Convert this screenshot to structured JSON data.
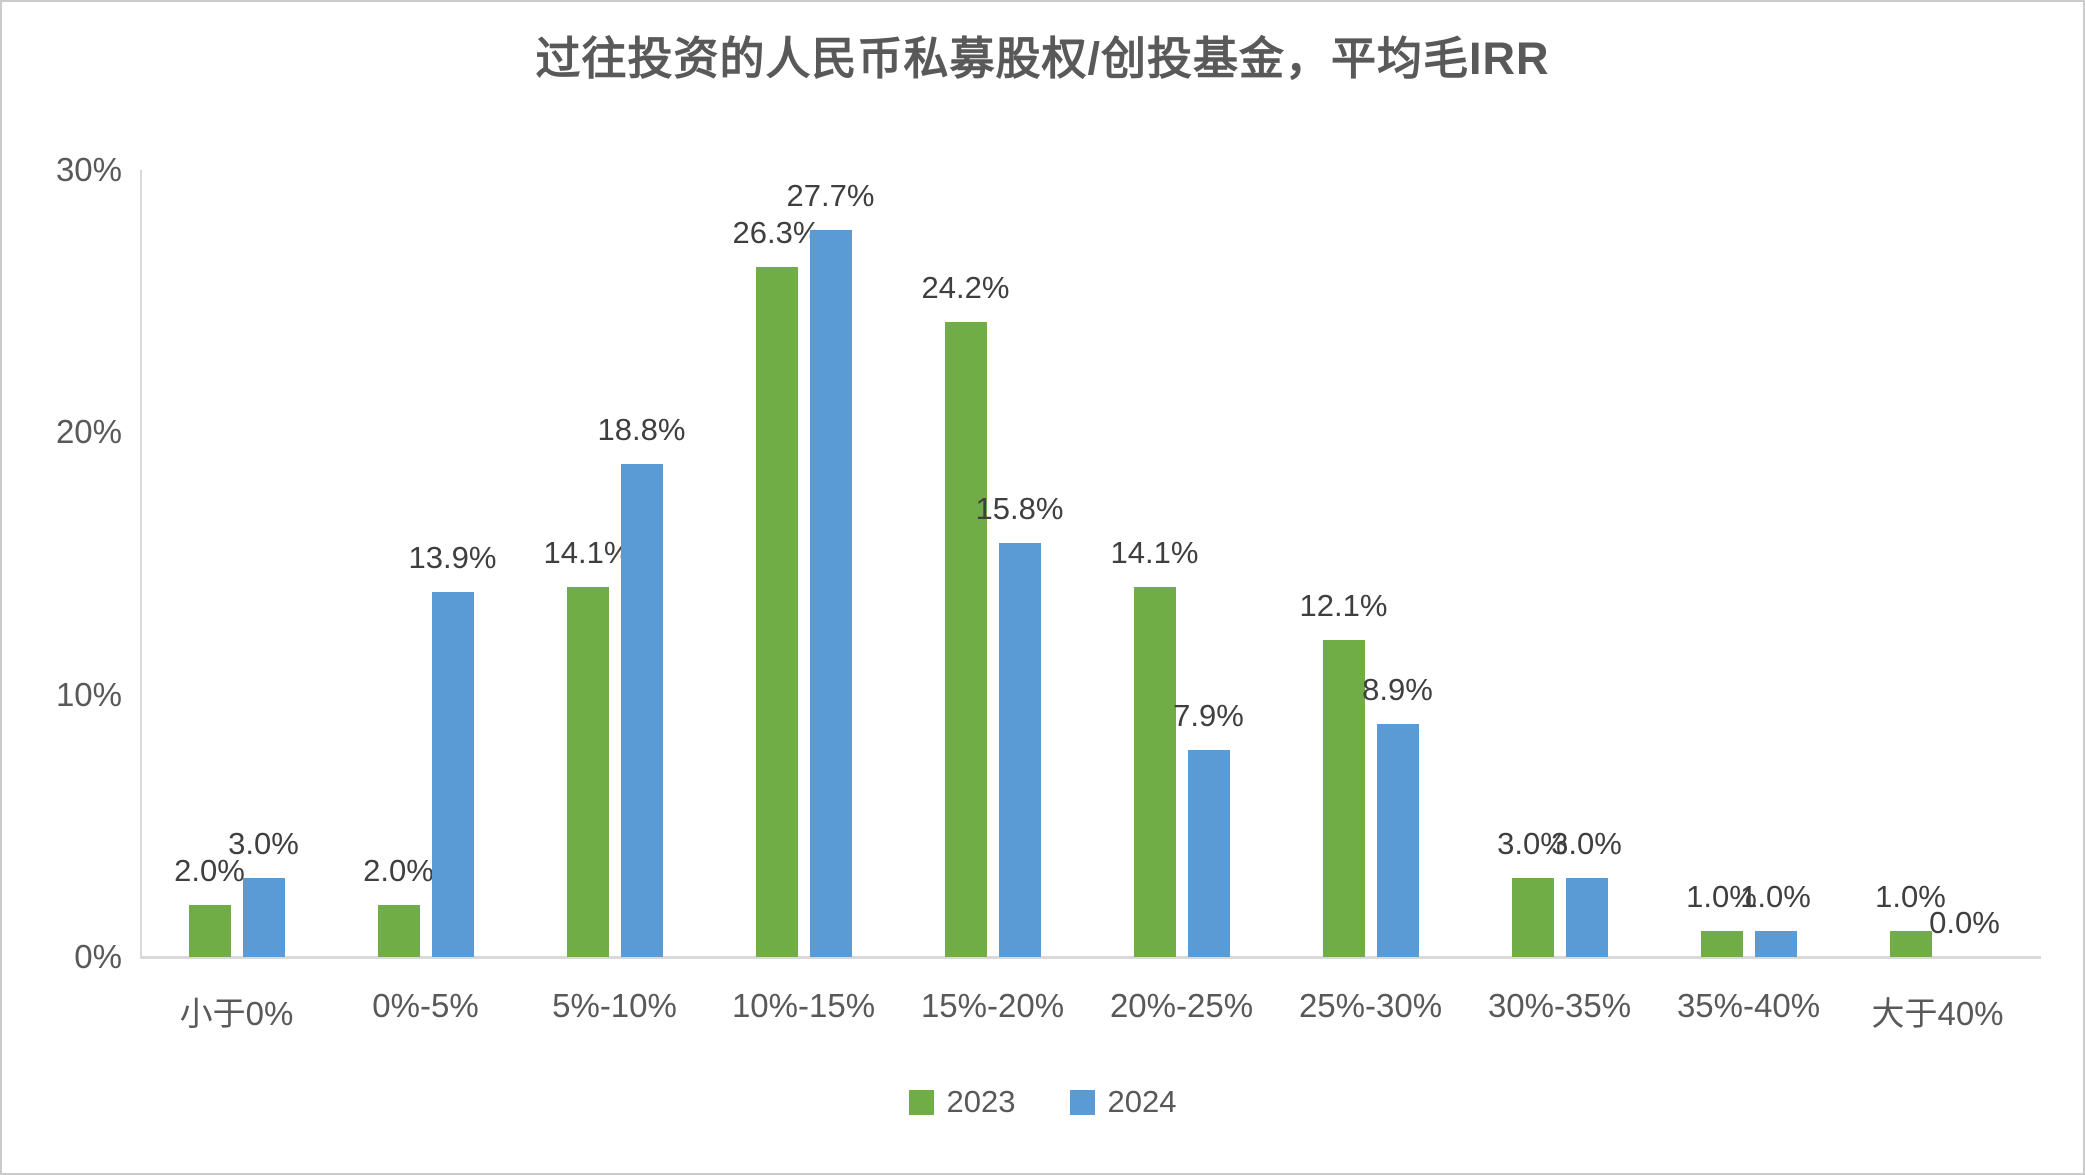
{
  "chart_data": {
    "type": "bar",
    "title": "过往投资的人民币私募股权/创投基金，平均毛IRR",
    "categories": [
      "小于0%",
      "0%-5%",
      "5%-10%",
      "10%-15%",
      "15%-20%",
      "20%-25%",
      "25%-30%",
      "30%-35%",
      "35%-40%",
      "大于40%"
    ],
    "series": [
      {
        "name": "2023",
        "color": "#70AD47",
        "values": [
          2.0,
          2.0,
          14.1,
          26.3,
          24.2,
          14.1,
          12.1,
          3.0,
          1.0,
          1.0
        ],
        "labels": [
          "2.0%",
          "2.0%",
          "14.1%",
          "26.3%",
          "24.2%",
          "14.1%",
          "12.1%",
          "3.0%",
          "1.0%",
          "1.0%"
        ]
      },
      {
        "name": "2024",
        "color": "#5B9BD5",
        "values": [
          3.0,
          13.9,
          18.8,
          27.7,
          15.8,
          7.9,
          8.9,
          3.0,
          1.0,
          0.0
        ],
        "labels": [
          "3.0%",
          "13.9%",
          "18.8%",
          "27.7%",
          "15.8%",
          "7.9%",
          "8.9%",
          "3.0%",
          "1.0%",
          "0.0%"
        ]
      }
    ],
    "xlabel": "",
    "ylabel": "",
    "ylim": [
      0,
      30
    ],
    "yticks": [
      "0%",
      "10%",
      "20%",
      "30%"
    ],
    "ytick_values": [
      0,
      10,
      20,
      30
    ],
    "grid": false,
    "legend_position": "bottom",
    "value_labels_shown": true
  },
  "colors": {
    "axis_line": "#d9d9d9",
    "tick_label": "#595959",
    "value_label": "#3f3f3f",
    "title": "#595959",
    "background": "#ffffff",
    "frame_border": "#cbcbcb"
  }
}
